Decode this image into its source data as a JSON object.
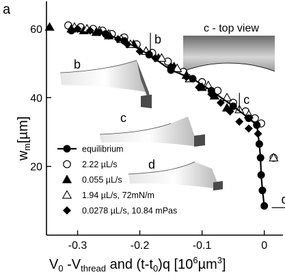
{
  "panel_label": "a",
  "chart_data": {
    "type": "scatter",
    "title": "",
    "xlabel": "V0 -Vthread and (t-t0)q [10^6 µm^3]",
    "ylabel": "wm [µm]",
    "xlim": [
      -0.35,
      0.03
    ],
    "ylim": [
      0,
      68
    ],
    "x_ticks": [
      -0.3,
      -0.2,
      -0.1,
      0
    ],
    "x_tick_labels": [
      "-0.3",
      "-0.2",
      "-0.1",
      "0"
    ],
    "y_ticks": [
      20,
      40,
      60
    ],
    "y_tick_labels": [
      "20",
      "40",
      "60"
    ],
    "grid": false,
    "legend_position": "bottom-left",
    "series": [
      {
        "name": "equilibrium",
        "marker": "filled-circle-line",
        "x": [
          -0.31,
          -0.255,
          -0.225,
          -0.185,
          -0.15,
          -0.115,
          -0.085,
          -0.05,
          -0.025,
          -0.012,
          -0.008,
          -0.006,
          -0.005,
          -0.003,
          0.0
        ],
        "y": [
          59.5,
          58.5,
          56.5,
          52.5,
          48.0,
          45.5,
          42.0,
          37.5,
          34.0,
          32.0,
          26.5,
          22.5,
          17.5,
          13.0,
          8.5
        ]
      },
      {
        "name": "2.22 µL/s",
        "marker": "open-circle",
        "x": [
          -0.315,
          -0.295,
          -0.275,
          -0.26,
          -0.245,
          -0.225,
          -0.205,
          -0.18,
          -0.155,
          -0.13,
          -0.1,
          -0.075,
          -0.05,
          -0.03,
          -0.015,
          -0.005,
          0.015
        ],
        "y": [
          61.0,
          60.5,
          60.0,
          59.5,
          58.5,
          57.5,
          55.5,
          53.0,
          50.5,
          47.5,
          44.5,
          42.0,
          38.5,
          36.0,
          34.0,
          32.5,
          22.5
        ]
      },
      {
        "name": "0.055 µL/s",
        "marker": "filled-triangle",
        "x": [
          -0.345,
          -0.31,
          -0.29,
          -0.27,
          -0.25,
          -0.23,
          -0.21,
          -0.19,
          -0.17,
          -0.145,
          -0.125,
          -0.1,
          -0.08,
          -0.06
        ],
        "y": [
          60.5,
          60.0,
          59.5,
          59.0,
          58.0,
          57.0,
          55.5,
          53.5,
          51.5,
          49.0,
          46.5,
          43.0,
          40.5,
          37.0
        ]
      },
      {
        "name": "1.94 µL/s, 72mN/m",
        "marker": "open-triangle",
        "x": [
          -0.305,
          -0.285,
          -0.265,
          -0.25,
          -0.23,
          -0.215,
          -0.19,
          -0.165,
          -0.14,
          -0.12,
          -0.09,
          -0.06,
          -0.04,
          -0.025,
          0.015
        ],
        "y": [
          60.5,
          60.0,
          59.5,
          58.5,
          57.0,
          55.5,
          53.5,
          51.5,
          48.5,
          45.5,
          43.5,
          40.0,
          36.5,
          35.0,
          22.5
        ]
      },
      {
        "name": "0.0278 µL/s, 10.84 mPas",
        "marker": "filled-diamond",
        "x": [
          -0.3,
          -0.28,
          -0.265,
          -0.25,
          -0.235,
          -0.22,
          -0.2,
          -0.175,
          -0.15,
          -0.125,
          -0.105,
          -0.085,
          -0.07,
          -0.055,
          -0.04,
          -0.025,
          -0.01
        ],
        "y": [
          60.0,
          59.5,
          59.0,
          58.0,
          57.0,
          55.5,
          53.5,
          51.5,
          49.0,
          46.0,
          43.0,
          41.0,
          38.5,
          36.0,
          33.0,
          31.0,
          29.5
        ]
      }
    ],
    "annotations": [
      {
        "text": "b",
        "x": -0.183,
        "y": 54.5
      },
      {
        "text": "c",
        "x": -0.04,
        "y": 37.0
      },
      {
        "text": "d",
        "x": 0.012,
        "y": 8.0
      }
    ]
  },
  "insets": {
    "b_label": "b",
    "c_label": "c",
    "d_label": "d",
    "topview_label": "c - top view"
  }
}
